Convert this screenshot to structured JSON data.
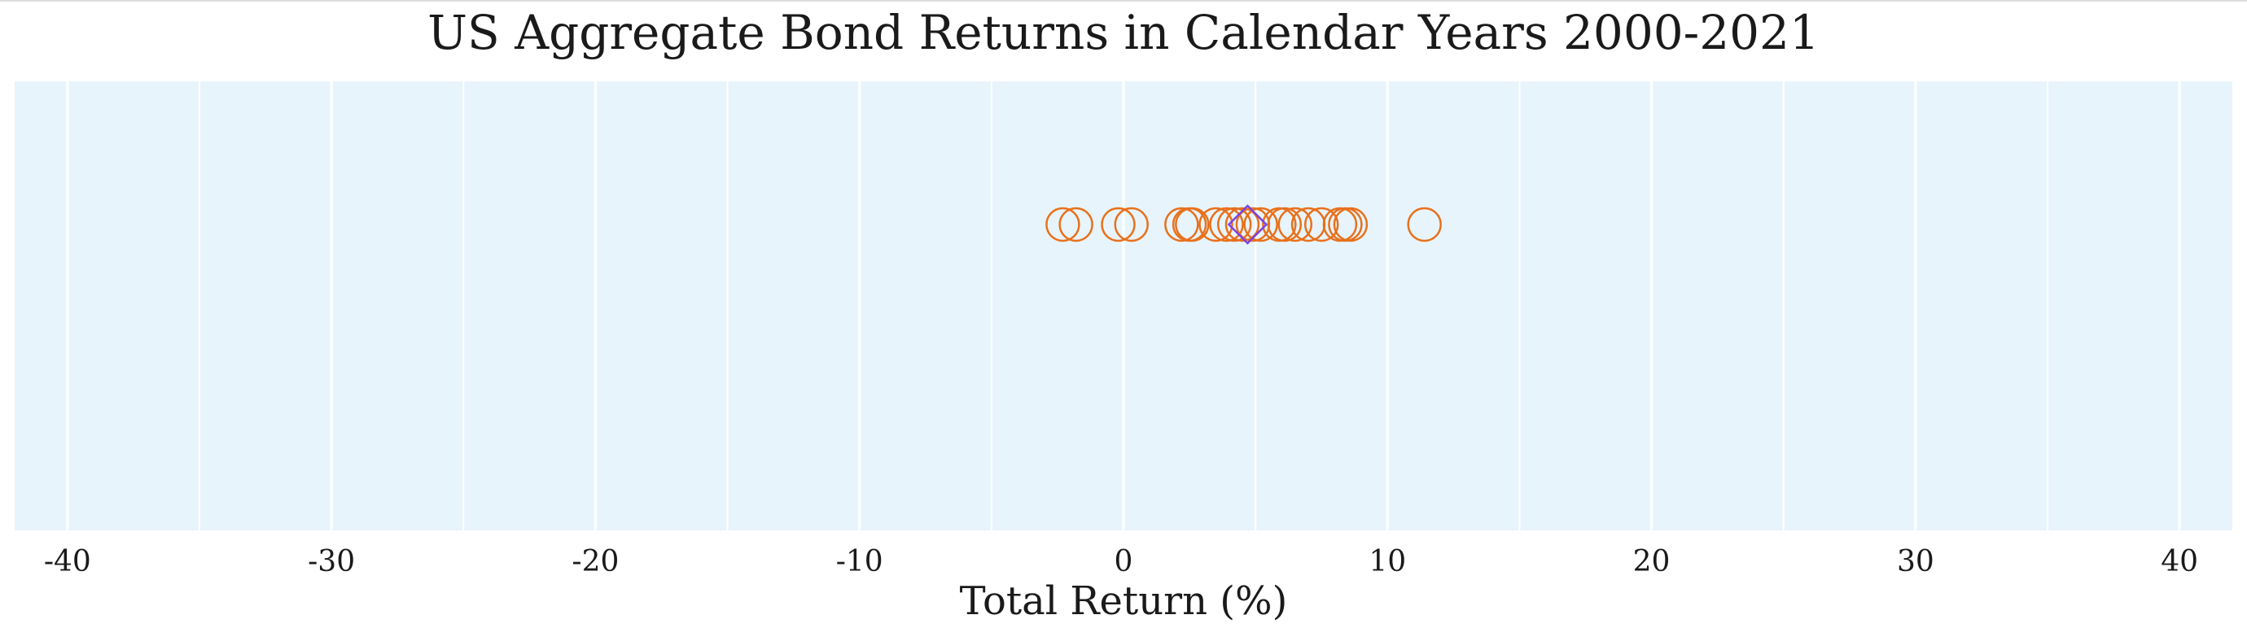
{
  "chart_data": {
    "type": "scatter",
    "title": "US Aggregate Bond Returns in Calendar Years 2000-2021",
    "xlabel": "Total Return (%)",
    "ylabel": "",
    "xlim": [
      -42,
      42
    ],
    "xticks": [
      -40,
      -30,
      -20,
      -10,
      0,
      10,
      20,
      30,
      40
    ],
    "xtick_labels": [
      "-40",
      "-30",
      "-20",
      "-10",
      "0",
      "10",
      "20",
      "30",
      "40"
    ],
    "grid": true,
    "legend": "none",
    "series": [
      {
        "marker": "circle",
        "color": "#e8711c",
        "x": [
          -2.3,
          -1.8,
          -0.2,
          0.3,
          2.2,
          2.5,
          2.6,
          3.5,
          3.9,
          4.2,
          4.5,
          4.9,
          5.2,
          5.9,
          6.1,
          6.5,
          7.0,
          7.5,
          8.2,
          8.4,
          8.6,
          11.4
        ]
      },
      {
        "marker": "diamond",
        "color": "#7b42e6",
        "x": [
          4.7
        ]
      }
    ],
    "colors": {
      "plot_background": "#e8f4fc",
      "grid": "#ffffff",
      "text": "#1a1a1a"
    }
  }
}
